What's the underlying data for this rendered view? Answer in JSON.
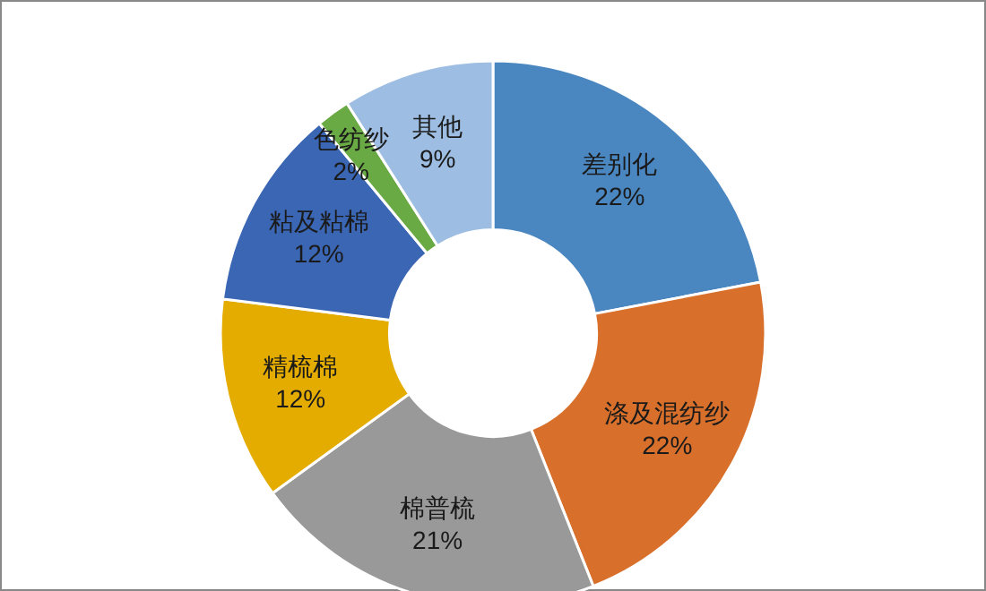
{
  "chart_data": {
    "type": "donut",
    "categories": [
      "差别化",
      "涤及混纺纱",
      "棉普梳",
      "精梳棉",
      "粘及粘棉",
      "色纺纱",
      "其他"
    ],
    "values": [
      22,
      22,
      21,
      12,
      12,
      2,
      9
    ],
    "value_labels": [
      "22%",
      "22%",
      "21%",
      "12%",
      "12%",
      "2%",
      "9%"
    ],
    "colors": [
      "#4a86c0",
      "#d8702c",
      "#999999",
      "#e5ac00",
      "#3a66b4",
      "#6aaa44",
      "#9dbde2"
    ]
  }
}
